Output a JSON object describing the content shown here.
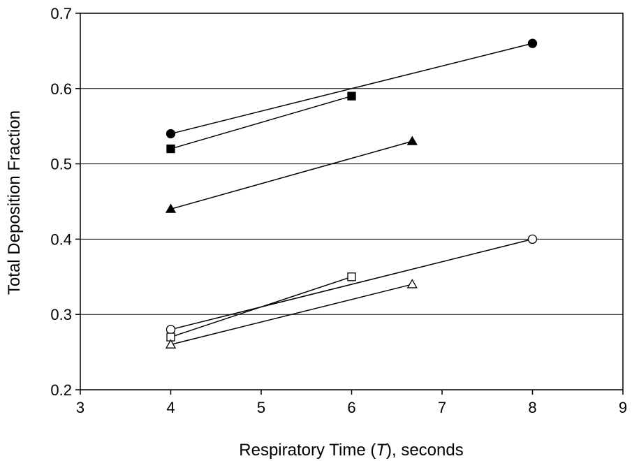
{
  "chart_data": {
    "type": "line",
    "title": "",
    "xlabel_parts": [
      "Respiratory Time (",
      "T",
      "), seconds"
    ],
    "ylabel": "Total Deposition Fraction",
    "xlim": [
      3,
      9
    ],
    "ylim": [
      0.2,
      0.7
    ],
    "x_ticks": [
      "3",
      "4",
      "5",
      "6",
      "7",
      "8",
      "9"
    ],
    "y_ticks": [
      "0.2",
      "0.3",
      "0.4",
      "0.5",
      "0.6",
      "0.7"
    ],
    "grid": "horizontal",
    "legend": "none",
    "series": [
      {
        "marker": "filled-circle",
        "x": [
          4,
          8
        ],
        "y": [
          0.54,
          0.66
        ]
      },
      {
        "marker": "filled-square",
        "x": [
          4,
          6
        ],
        "y": [
          0.52,
          0.59
        ]
      },
      {
        "marker": "filled-triangle",
        "x": [
          4,
          6.67
        ],
        "y": [
          0.44,
          0.53
        ]
      },
      {
        "marker": "open-circle",
        "x": [
          4,
          8
        ],
        "y": [
          0.28,
          0.4
        ]
      },
      {
        "marker": "open-square",
        "x": [
          4,
          6
        ],
        "y": [
          0.27,
          0.35
        ]
      },
      {
        "marker": "open-triangle",
        "x": [
          4,
          6.67
        ],
        "y": [
          0.26,
          0.34
        ]
      }
    ]
  }
}
